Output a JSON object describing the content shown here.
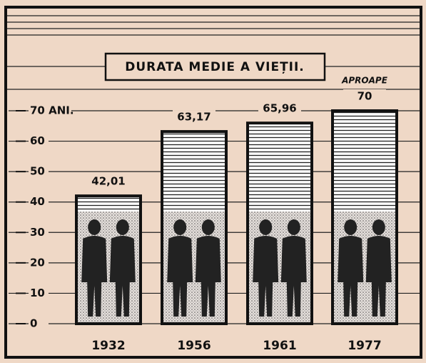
{
  "chart_data": {
    "type": "bar",
    "title": "DURATA MEDIE A VIEȚII.",
    "categories": [
      "1932",
      "1956",
      "1961",
      "1977"
    ],
    "values": [
      42.01,
      63.17,
      65.96,
      70
    ],
    "value_labels": [
      "42,01",
      "63,17",
      "65,96",
      "70"
    ],
    "annotation": "APROAPE",
    "color": "#ffffff",
    "ylim": [
      0,
      70
    ],
    "yticks": [
      0,
      10,
      20,
      30,
      40,
      50,
      60,
      {
        "value": 70,
        "label": "70 ANI."
      }
    ],
    "grid": true
  }
}
